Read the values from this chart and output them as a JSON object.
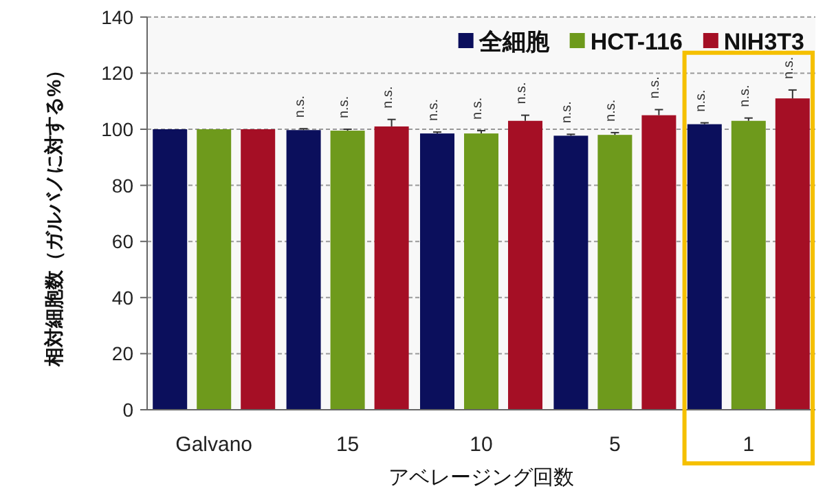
{
  "chart_data": {
    "type": "bar",
    "xlabel": "アベレージング回数",
    "ylabel": "相対細胞数（ガルバノに対する%）",
    "categories": [
      "Galvano",
      "15",
      "10",
      "5",
      "1"
    ],
    "series": [
      {
        "name": "全細胞",
        "color": "#0b0f5c",
        "values": [
          100,
          99.7,
          98.5,
          97.7,
          101.8
        ],
        "errors": [
          null,
          0.5,
          0.5,
          0.5,
          0.5
        ]
      },
      {
        "name": "HCT-116",
        "color": "#6e9a1c",
        "values": [
          100,
          99.5,
          98.5,
          98,
          103
        ],
        "errors": [
          null,
          0.5,
          1,
          0.8,
          1
        ]
      },
      {
        "name": "NIH3T3",
        "color": "#a50f25",
        "values": [
          100,
          101,
          103,
          105,
          111
        ],
        "errors": [
          null,
          2.5,
          2,
          2,
          3
        ]
      }
    ],
    "ylim": [
      0,
      140
    ],
    "yticks": [
      0,
      20,
      40,
      60,
      80,
      100,
      120,
      140
    ],
    "grid": "y",
    "legend": "top right",
    "annotations": [
      "n.s.",
      "n.s.",
      "n.s.",
      "n.s.",
      "n.s.",
      "n.s.",
      "n.s.",
      "n.s.",
      "n.s.",
      "n.s.",
      "n.s.",
      "n.s."
    ]
  }
}
